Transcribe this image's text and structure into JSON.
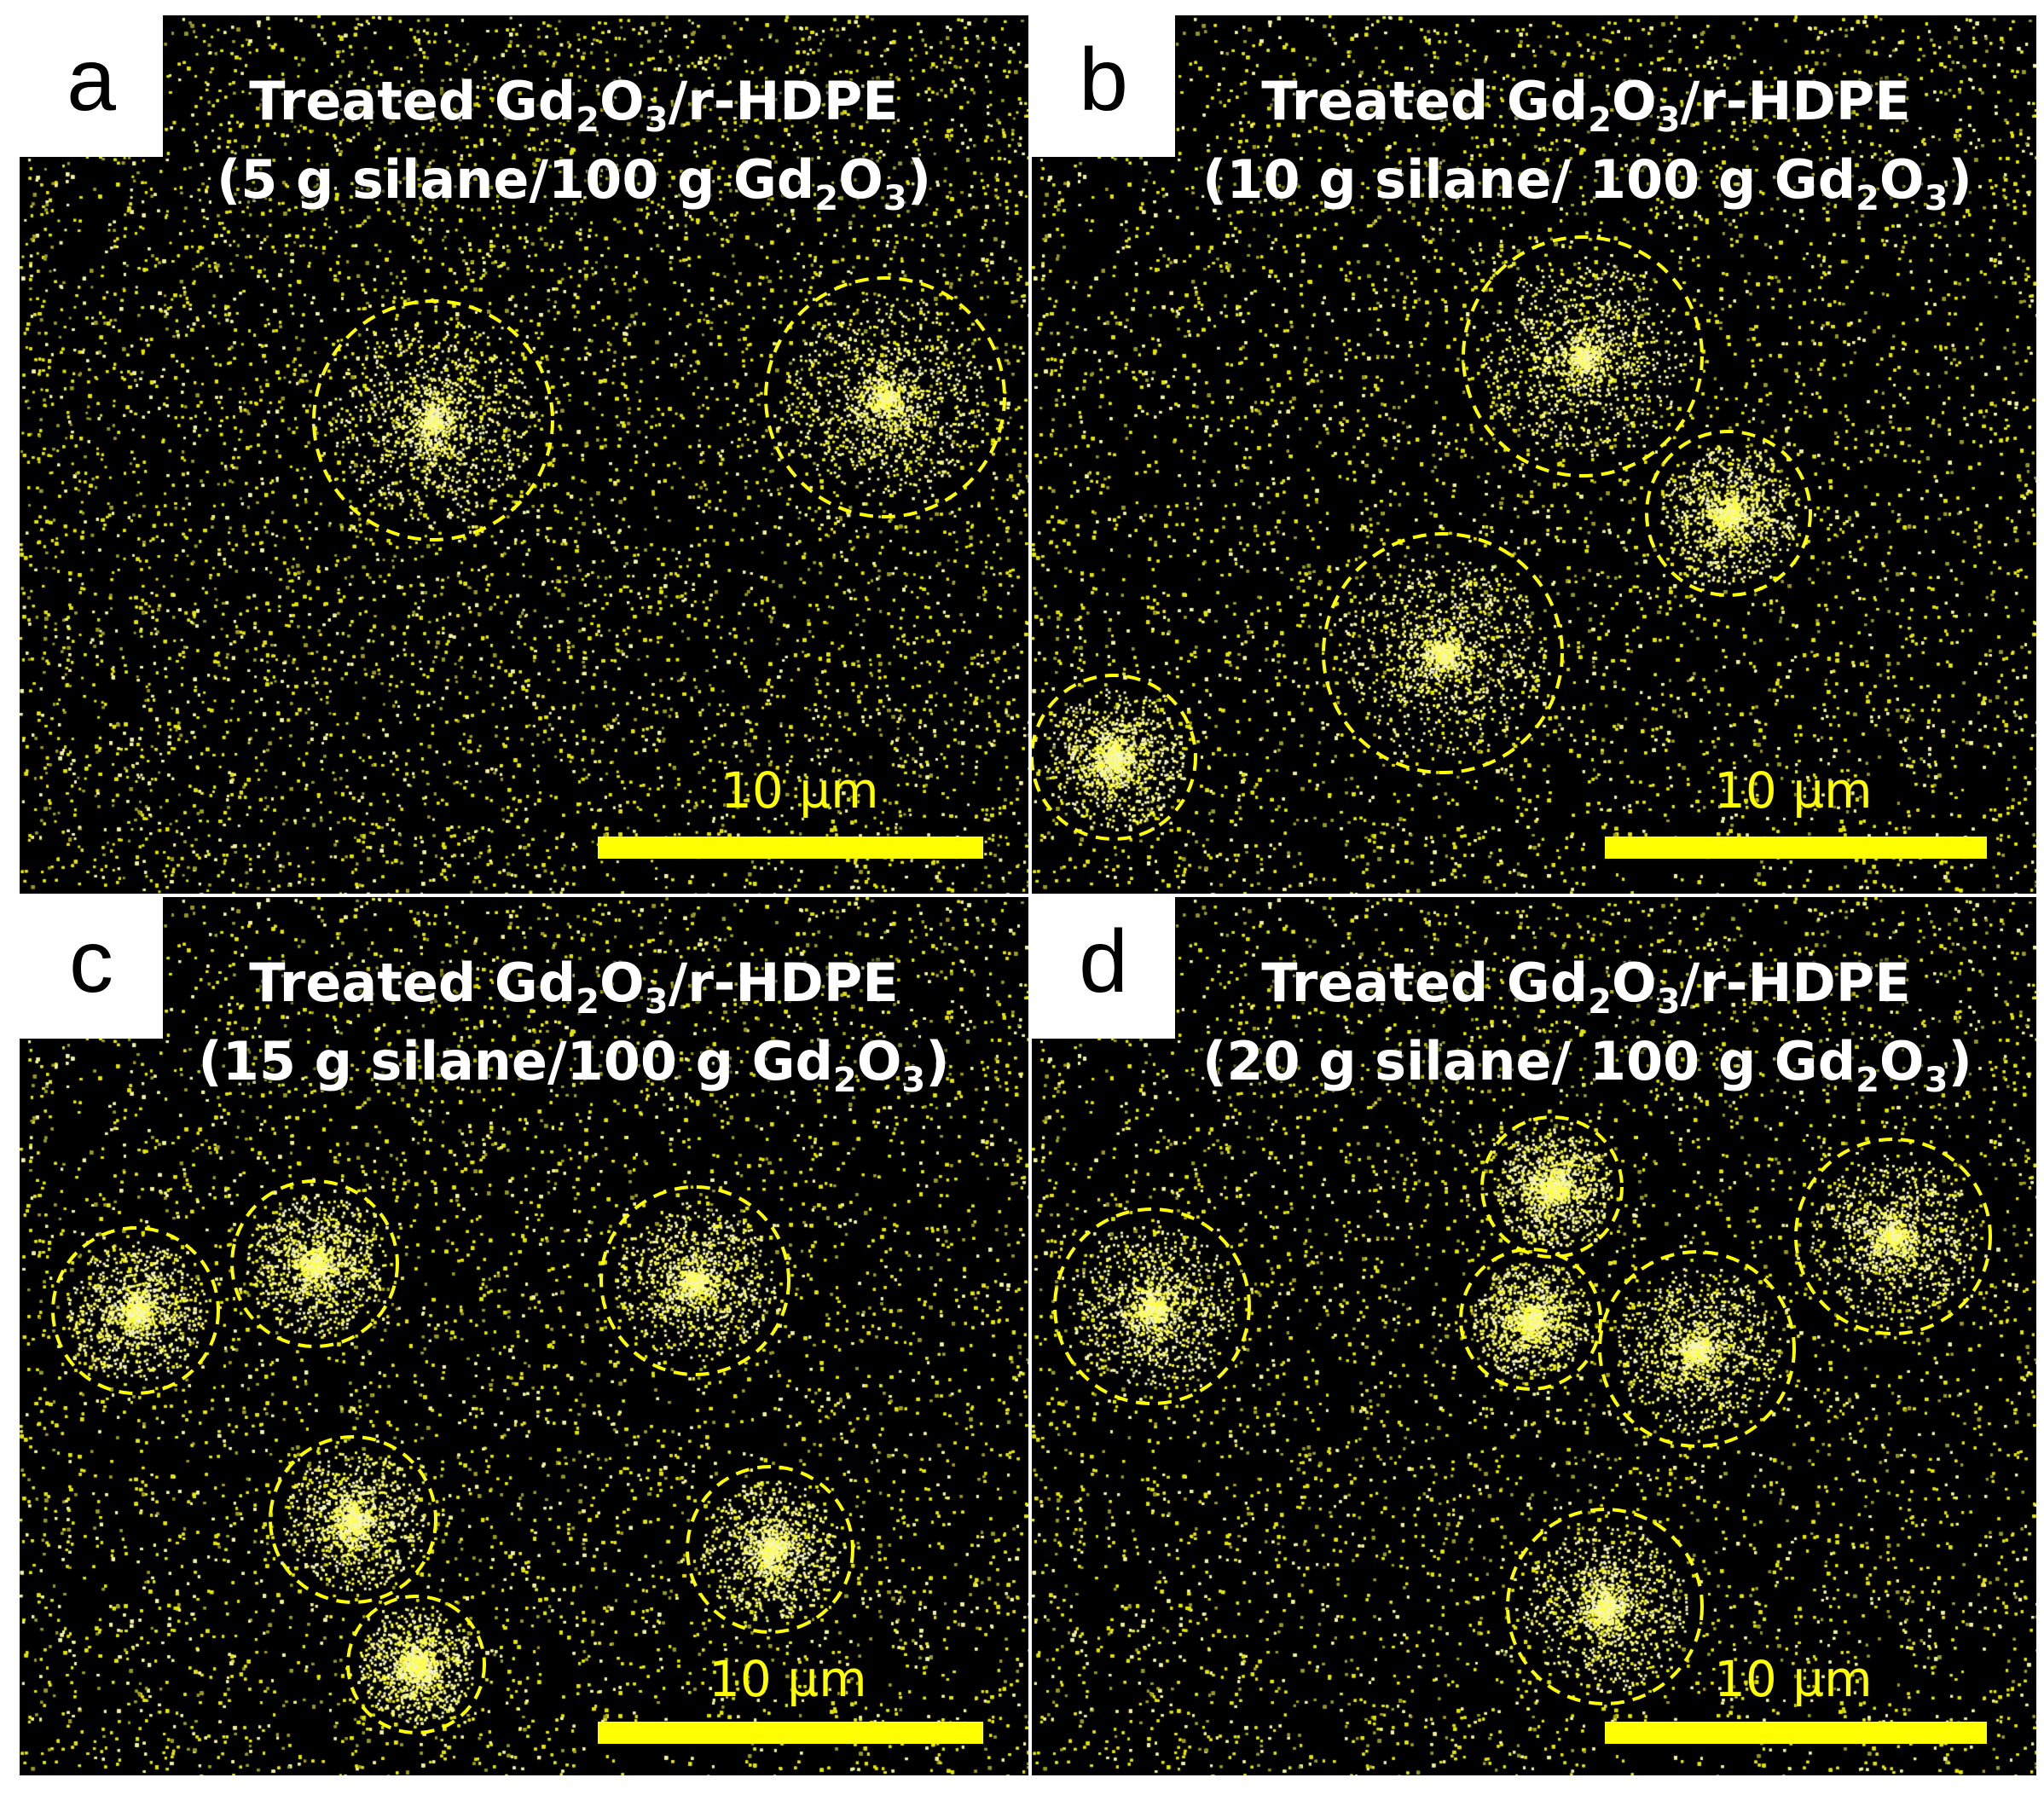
{
  "accent_color": "#ffff00",
  "panels": [
    {
      "id": "a",
      "letter": "a",
      "title_prefix": "Treated Gd",
      "title_mid": "O",
      "title_suffix": "/r-HDPE",
      "loading_prefix": "(5 g silane/100 g Gd",
      "loading_mid": "O",
      "loading_suffix": ")",
      "sub_2": "2",
      "sub_3": "3",
      "scale_label": "10 µm"
    },
    {
      "id": "b",
      "letter": "b",
      "title_prefix": "Treated Gd",
      "title_mid": "O",
      "title_suffix": "/r-HDPE",
      "loading_prefix": "(10 g silane/ 100 g Gd",
      "loading_mid": "O",
      "loading_suffix": ")",
      "sub_2": "2",
      "sub_3": "3",
      "scale_label": "10 µm"
    },
    {
      "id": "c",
      "letter": "c",
      "title_prefix": "Treated Gd",
      "title_mid": "O",
      "title_suffix": "/r-HDPE",
      "loading_prefix": "(15 g silane/100 g Gd",
      "loading_mid": "O",
      "loading_suffix": ")",
      "sub_2": "2",
      "sub_3": "3",
      "scale_label": "10 µm"
    },
    {
      "id": "d",
      "letter": "d",
      "title_prefix": "Treated Gd",
      "title_mid": "O",
      "title_suffix": "/r-HDPE",
      "loading_prefix": "(20 g silane/ 100 g Gd",
      "loading_mid": "O",
      "loading_suffix": ")",
      "sub_2": "2",
      "sub_3": "3",
      "scale_label": "10 µm"
    }
  ]
}
